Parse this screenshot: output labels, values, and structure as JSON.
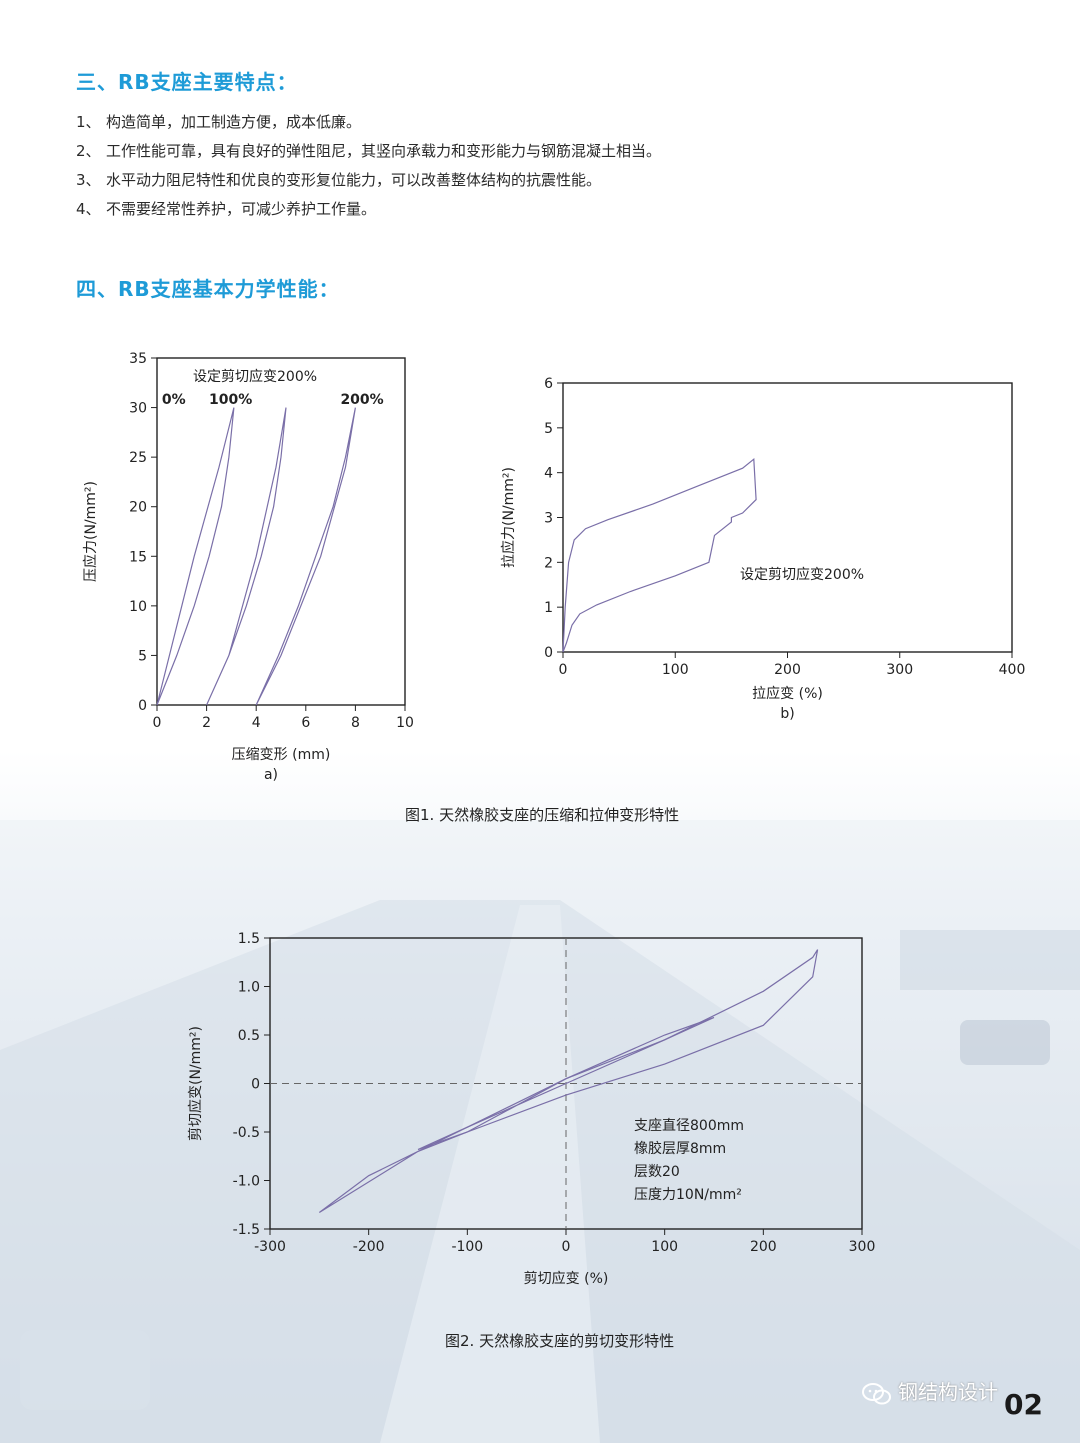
{
  "section3": {
    "heading": "三、RB支座主要特点：",
    "items": [
      {
        "num": "1、",
        "text": "构造简单，加工制造方便，成本低廉。"
      },
      {
        "num": "2、",
        "text": "工作性能可靠，具有良好的弹性阻尼，其竖向承载力和变形能力与钢筋混凝土相当。"
      },
      {
        "num": "3、",
        "text": "水平动力阻尼特性和优良的变形复位能力，可以改善整体结构的抗震性能。"
      },
      {
        "num": "4、",
        "text": "不需要经常性养护，可减少养护工作量。"
      }
    ]
  },
  "section4": {
    "heading": "四、RB支座基本力学性能："
  },
  "figure1": {
    "caption": "图1. 天然橡胶支座的压缩和拉伸变形特性",
    "chart_a": {
      "type": "line",
      "sublabel": "a)",
      "xlabel": "压缩变形 (mm)",
      "ylabel": "压应力(N/mm²)",
      "xlim": [
        0,
        10
      ],
      "ylim": [
        0,
        35
      ],
      "xticks": [
        "0",
        "2",
        "4",
        "6",
        "8",
        "10"
      ],
      "yticks": [
        "0",
        "5",
        "10",
        "15",
        "20",
        "25",
        "30",
        "35"
      ],
      "annotation": "设定剪切应变200%",
      "series": [
        {
          "name": "0%",
          "x": [
            0,
            0.8,
            1.5,
            2.1,
            2.6,
            2.9,
            3.1,
            2.5,
            1.5,
            0.6,
            0
          ],
          "y": [
            0,
            5,
            10,
            15,
            20,
            25,
            30,
            24,
            15,
            6,
            0
          ]
        },
        {
          "name": "100%",
          "x": [
            2,
            2.9,
            3.6,
            4.2,
            4.7,
            5.0,
            5.2,
            4.8,
            4.0,
            2.9,
            2
          ],
          "y": [
            0,
            5,
            10,
            15,
            20,
            25,
            30,
            24,
            15,
            5,
            0
          ]
        },
        {
          "name": "200%",
          "x": [
            4,
            4.9,
            5.7,
            6.4,
            7.1,
            7.6,
            8.0,
            7.6,
            6.6,
            5.0,
            4
          ],
          "y": [
            0,
            5,
            10,
            15,
            20,
            25,
            30,
            24,
            15,
            5,
            0
          ]
        }
      ]
    },
    "chart_b": {
      "type": "line",
      "sublabel": "b)",
      "xlabel": "拉应变 (%)",
      "ylabel": "拉应力(N/mm²)",
      "xlim": [
        0,
        400
      ],
      "ylim": [
        0,
        6
      ],
      "xticks": [
        "0",
        "100",
        "200",
        "300",
        "400"
      ],
      "yticks": [
        "0",
        "1",
        "2",
        "3",
        "4",
        "5",
        "6"
      ],
      "annotation": "设定剪切应变200%",
      "series": [
        {
          "name": "",
          "x": [
            0,
            2,
            5,
            10,
            20,
            40,
            80,
            120,
            160,
            170,
            172,
            160,
            150,
            150,
            135,
            130,
            100,
            60,
            30,
            15,
            8,
            3,
            0
          ],
          "y": [
            0,
            1.0,
            2.0,
            2.5,
            2.75,
            2.95,
            3.3,
            3.7,
            4.1,
            4.3,
            3.4,
            3.1,
            3.0,
            2.9,
            2.6,
            2.0,
            1.7,
            1.35,
            1.05,
            0.85,
            0.6,
            0.2,
            0
          ]
        }
      ]
    }
  },
  "figure2": {
    "caption": "图2. 天然橡胶支座的剪切变形特性",
    "chart": {
      "type": "line",
      "xlabel": "剪切应变 (%)",
      "ylabel": "剪切应变(N/mm²)",
      "xlim": [
        -300,
        300
      ],
      "ylim": [
        -1.5,
        1.5
      ],
      "xticks": [
        "-300",
        "-200",
        "-100",
        "0",
        "100",
        "200",
        "300"
      ],
      "yticks": [
        "1.5",
        "1.0",
        "0.5",
        "0",
        "-0.5",
        "-1.0",
        "-1.5"
      ],
      "notes": [
        "支座直径800mm",
        "橡胶层厚8mm",
        "层数20",
        "压度力10N/mm²"
      ],
      "series": [
        {
          "name": "",
          "x": [
            -250,
            -150,
            -50,
            0,
            100,
            200,
            250,
            255,
            250,
            200,
            100,
            0,
            -100,
            -150,
            -200,
            -250
          ],
          "y": [
            -1.33,
            -0.7,
            -0.2,
            0.05,
            0.45,
            0.95,
            1.3,
            1.38,
            1.1,
            0.6,
            0.2,
            -0.12,
            -0.5,
            -0.7,
            -0.95,
            -1.33
          ]
        },
        {
          "name": "",
          "x": [
            -150,
            -100,
            0,
            100,
            150,
            100,
            0,
            -100,
            -150
          ],
          "y": [
            -0.68,
            -0.5,
            0.05,
            0.5,
            0.68,
            0.45,
            0.0,
            -0.45,
            -0.68
          ]
        }
      ]
    }
  },
  "footer": {
    "logo_text": "钢结构设计",
    "page_number": "02"
  }
}
